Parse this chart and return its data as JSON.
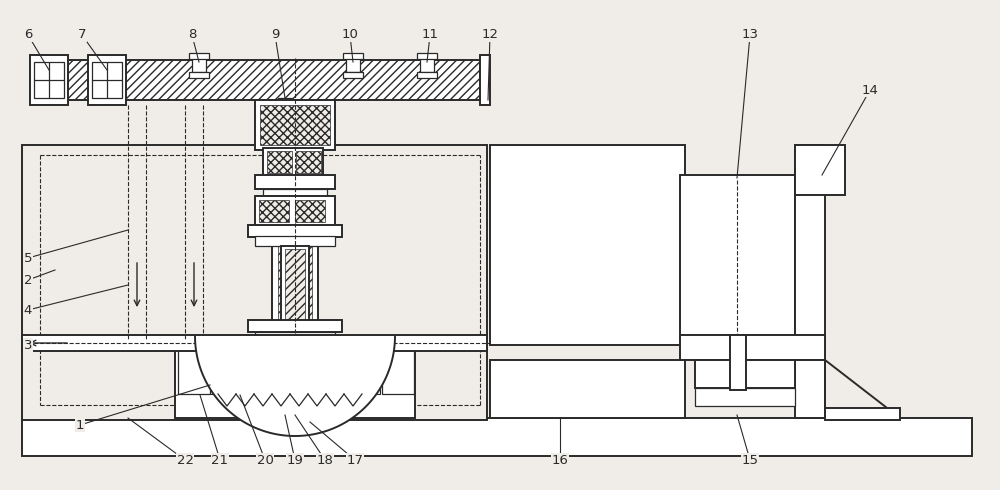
{
  "bg_color": "#f0ede8",
  "line_color": "#2a2a2a",
  "fig_width": 10.0,
  "fig_height": 4.9,
  "label_fs": 9.5,
  "lw_main": 1.4,
  "lw_thin": 0.9
}
